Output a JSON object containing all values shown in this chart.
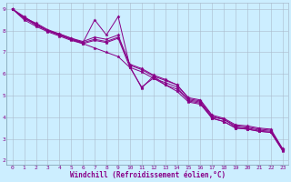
{
  "xlabel": "Windchill (Refroidissement éolien,°C)",
  "xlim": [
    -0.5,
    23.5
  ],
  "ylim": [
    1.8,
    9.3
  ],
  "xticks": [
    0,
    1,
    2,
    3,
    4,
    5,
    6,
    7,
    8,
    9,
    10,
    11,
    12,
    13,
    14,
    15,
    16,
    17,
    18,
    19,
    20,
    21,
    22,
    23
  ],
  "yticks": [
    2,
    3,
    4,
    5,
    6,
    7,
    8,
    9
  ],
  "bg_color": "#cceeff",
  "line_color": "#880088",
  "grid_color": "#aabbcc",
  "lines": [
    [
      9.0,
      8.55,
      8.3,
      8.0,
      7.8,
      7.6,
      7.4,
      7.2,
      7.0,
      6.8,
      6.3,
      5.4,
      5.8,
      5.5,
      5.3,
      4.8,
      4.7,
      4.0,
      3.9,
      3.55,
      3.5,
      3.4,
      3.35,
      2.5
    ],
    [
      9.0,
      8.6,
      8.35,
      8.05,
      7.85,
      7.65,
      7.45,
      8.5,
      7.8,
      8.65,
      6.35,
      5.35,
      5.9,
      5.5,
      5.2,
      4.7,
      4.6,
      3.95,
      3.8,
      3.5,
      3.45,
      3.35,
      3.3,
      2.45
    ],
    [
      9.0,
      8.65,
      8.3,
      8.0,
      7.85,
      7.65,
      7.5,
      7.7,
      7.6,
      7.8,
      6.4,
      6.2,
      5.9,
      5.7,
      5.5,
      4.85,
      4.75,
      4.05,
      3.9,
      3.6,
      3.55,
      3.45,
      3.4,
      2.52
    ],
    [
      9.0,
      8.6,
      8.25,
      8.0,
      7.8,
      7.6,
      7.45,
      7.6,
      7.5,
      7.7,
      6.45,
      6.25,
      5.95,
      5.75,
      5.5,
      4.9,
      4.8,
      4.1,
      3.95,
      3.65,
      3.6,
      3.5,
      3.45,
      2.55
    ],
    [
      9.0,
      8.5,
      8.2,
      7.95,
      7.75,
      7.55,
      7.4,
      7.55,
      7.45,
      7.65,
      6.3,
      6.1,
      5.8,
      5.6,
      5.4,
      4.75,
      4.65,
      3.95,
      3.8,
      3.5,
      3.45,
      3.35,
      3.3,
      2.48
    ]
  ],
  "title_fontsize": 7,
  "axis_fontsize": 5.5,
  "tick_fontsize": 4.5
}
